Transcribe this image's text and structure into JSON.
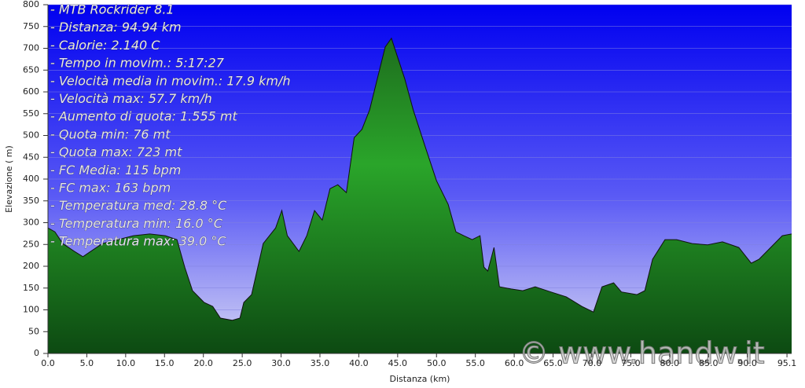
{
  "chart_data": {
    "type": "area",
    "annotations": [
      "- MTB Rockrider 8.1",
      "- Distanza: 94.94 km",
      "- Calorie: 2.140 C",
      "- Tempo in movim.: 5:17:27",
      "- Velocità media in movim.: 17.9 km/h",
      "- Velocità max: 57.7 km/h",
      "- Aumento di quota: 1.555 mt",
      "- Quota min: 76 mt",
      "- Quota max: 723 mt",
      "- FC Media: 115 bpm",
      "- FC max: 163 bpm",
      "- Temperatura med: 28.8 °C",
      "- Temperatura min: 16.0 °C",
      "- Temperatura max: 39.0 °C"
    ],
    "watermark": "© www.handw.it",
    "x_label": "Distanza  (km)",
    "y_label": "Elevazione ( m)",
    "x": [
      0,
      0.9,
      1.9,
      3.4,
      4.5,
      5.5,
      7.0,
      9.0,
      11.0,
      13.1,
      15.1,
      16.6,
      17.6,
      18.6,
      20.1,
      21.2,
      22.2,
      23.7,
      24.7,
      25.2,
      26.2,
      27.7,
      29.3,
      30.1,
      30.8,
      32.3,
      33.3,
      34.3,
      35.3,
      36.3,
      37.3,
      38.4,
      39.4,
      40.4,
      41.4,
      42.4,
      43.4,
      44.2,
      44.9,
      45.9,
      47.0,
      48.5,
      50.0,
      51.5,
      52.5,
      53.5,
      54.6,
      55.6,
      56.1,
      56.6,
      57.4,
      58.1,
      59.6,
      61.1,
      62.7,
      64.7,
      66.7,
      68.7,
      70.2,
      71.3,
      72.8,
      73.8,
      75.8,
      76.8,
      77.8,
      79.4,
      80.9,
      82.9,
      84.9,
      86.8,
      88.9,
      90.5,
      91.5,
      93.0,
      94.5,
      95.7
    ],
    "values": [
      288,
      279,
      252,
      234,
      222,
      234,
      252,
      261,
      270,
      274,
      270,
      261,
      198,
      144,
      117,
      108,
      81,
      76,
      81,
      117,
      135,
      252,
      288,
      328,
      270,
      234,
      270,
      328,
      306,
      378,
      387,
      369,
      495,
      514,
      559,
      631,
      703,
      723,
      685,
      631,
      559,
      477,
      396,
      342,
      279,
      270,
      261,
      270,
      198,
      189,
      243,
      153,
      148,
      144,
      153,
      141,
      130,
      108,
      95,
      153,
      162,
      141,
      135,
      144,
      216,
      261,
      261,
      252,
      249,
      256,
      243,
      207,
      216,
      243,
      270,
      274
    ],
    "color": "#1f9a2a",
    "xlim": [
      0,
      95.7
    ],
    "ylim": [
      0,
      800
    ],
    "xticks": [
      {
        "value": 0,
        "label": "0.0"
      },
      {
        "value": 5,
        "label": "5.0"
      },
      {
        "value": 10,
        "label": "10.0"
      },
      {
        "value": 15,
        "label": "15.0"
      },
      {
        "value": 20,
        "label": "20.0"
      },
      {
        "value": 25,
        "label": "25.0"
      },
      {
        "value": 30,
        "label": "30.0"
      },
      {
        "value": 35,
        "label": "35.0"
      },
      {
        "value": 40,
        "label": "40.0"
      },
      {
        "value": 45,
        "label": "45.0"
      },
      {
        "value": 50,
        "label": "50.0"
      },
      {
        "value": 55,
        "label": "55.0"
      },
      {
        "value": 60,
        "label": "60.0"
      },
      {
        "value": 65,
        "label": "65.0"
      },
      {
        "value": 70,
        "label": "70.0"
      },
      {
        "value": 75,
        "label": "75.0"
      },
      {
        "value": 80,
        "label": "80.0"
      },
      {
        "value": 85,
        "label": "85.0"
      },
      {
        "value": 90,
        "label": "90.0"
      },
      95.1
    ],
    "yticks": [
      0,
      50,
      100,
      150,
      200,
      250,
      300,
      350,
      400,
      450,
      500,
      550,
      600,
      650,
      700,
      750,
      800
    ],
    "grid": true
  }
}
